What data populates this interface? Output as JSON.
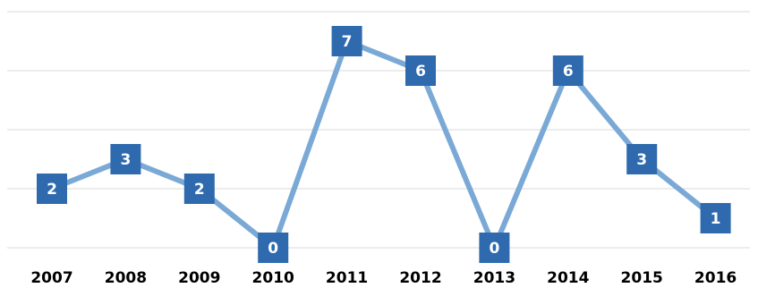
{
  "chart_data": {
    "type": "line",
    "title": "",
    "xlabel": "",
    "ylabel": "",
    "categories": [
      "2007",
      "2008",
      "2009",
      "2010",
      "2011",
      "2012",
      "2013",
      "2014",
      "2015",
      "2016"
    ],
    "series": [
      {
        "values": [
          2,
          3,
          2,
          0,
          7,
          6,
          0,
          6,
          3,
          1
        ]
      }
    ],
    "ylim": [
      0,
      8
    ],
    "grid": true,
    "legend": "none",
    "colors": {
      "line": "#7aa9d6",
      "marker": "#2e6aad",
      "marker_text": "#ffffff",
      "grid": "#d9d9d9",
      "tick_text": "#000000"
    }
  }
}
